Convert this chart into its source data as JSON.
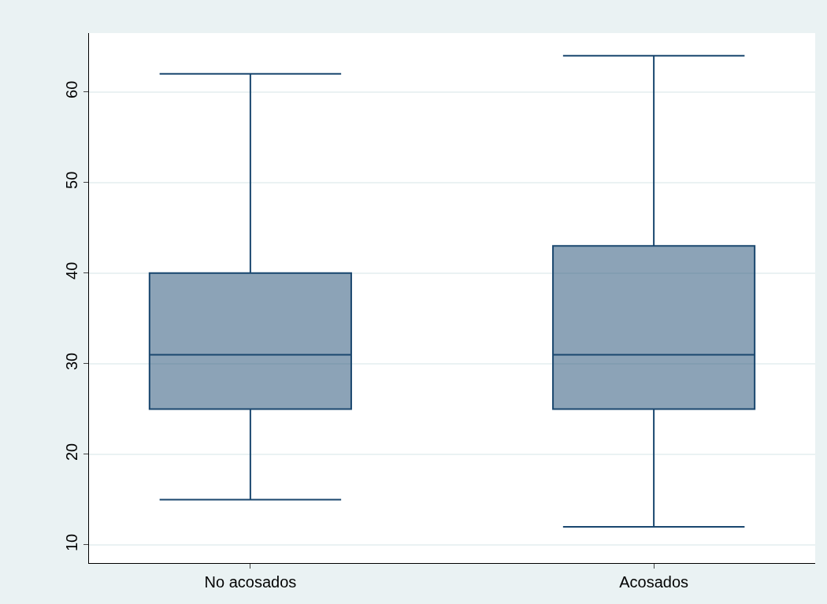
{
  "chart_data": {
    "type": "box",
    "categories": [
      "No acosados",
      "Acosados"
    ],
    "series": [
      {
        "color": "#1a476f",
        "boxes": [
          {
            "low": 15,
            "q1": 25,
            "median": 31,
            "q3": 40,
            "high": 62
          },
          {
            "low": 12,
            "q1": 25,
            "median": 31,
            "q3": 43,
            "high": 64
          }
        ]
      }
    ],
    "ylim": [
      8,
      66.5
    ],
    "yticks": [
      10,
      20,
      30,
      40,
      50,
      60
    ],
    "grid": "y"
  }
}
